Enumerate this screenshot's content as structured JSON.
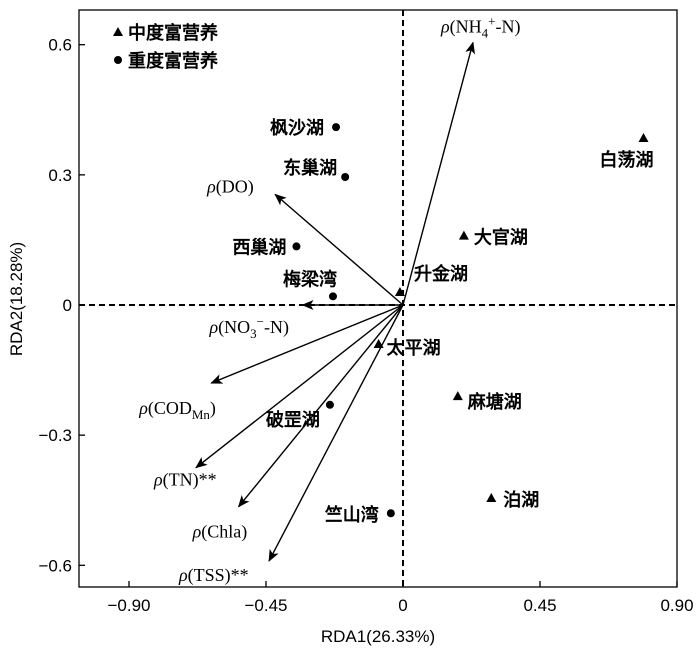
{
  "chart_data": {
    "type": "scatter",
    "title": "",
    "xlabel": "RDA1(26.33%)",
    "ylabel": "RDA2(18.28%)",
    "xlim": [
      -0.9,
      0.9
    ],
    "ylim": [
      -0.65,
      0.68
    ],
    "xticks": [
      -0.9,
      -0.45,
      0,
      0.45,
      0.9
    ],
    "xtick_labels": [
      "−0.90",
      "−0.45",
      "0",
      "0.45",
      "0.90"
    ],
    "yticks": [
      -0.6,
      -0.3,
      0,
      0.3,
      0.6
    ],
    "ytick_labels": [
      "−0.6",
      "−0.3",
      "0",
      "0.3",
      "0.6"
    ],
    "grid": false,
    "reference_lines": [
      {
        "axis": "x",
        "value": 0,
        "style": "dashed"
      },
      {
        "axis": "y",
        "value": 0,
        "style": "dashed"
      }
    ],
    "legend": {
      "placement": "top-left",
      "entries": [
        {
          "marker": "triangle",
          "label": "中度富营养"
        },
        {
          "marker": "circle",
          "label": "重度富营养"
        }
      ]
    },
    "series": [
      {
        "name": "中度富营养",
        "marker": "triangle",
        "points": [
          {
            "label": "白荡湖",
            "x": 0.79,
            "y": 0.385
          },
          {
            "label": "大官湖",
            "x": 0.2,
            "y": 0.16
          },
          {
            "label": "升金湖",
            "x": -0.01,
            "y": 0.03
          },
          {
            "label": "太平湖",
            "x": -0.08,
            "y": -0.09
          },
          {
            "label": "麻塘湖",
            "x": 0.18,
            "y": -0.21
          },
          {
            "label": "泊湖",
            "x": 0.29,
            "y": -0.445
          }
        ]
      },
      {
        "name": "重度富营养",
        "marker": "circle",
        "points": [
          {
            "label": "枫沙湖",
            "x": -0.22,
            "y": 0.41
          },
          {
            "label": "东巢湖",
            "x": -0.19,
            "y": 0.295
          },
          {
            "label": "西巢湖",
            "x": -0.35,
            "y": 0.135
          },
          {
            "label": "梅梁湾",
            "x": -0.23,
            "y": 0.02
          },
          {
            "label": "破罡湖",
            "x": -0.24,
            "y": -0.23
          },
          {
            "label": "竺山湾",
            "x": -0.04,
            "y": -0.48
          }
        ]
      }
    ],
    "vectors": [
      {
        "label": "ρ(NH4+-N)",
        "x": 0.23,
        "y": 0.605
      },
      {
        "label": "ρ(DO)",
        "x": -0.42,
        "y": 0.255
      },
      {
        "label": "ρ(NO3−-N)",
        "x": -0.33,
        "y": 0.0
      },
      {
        "label": "ρ(CODMn)",
        "x": -0.63,
        "y": -0.18
      },
      {
        "label": "ρ(TN)**",
        "x": -0.68,
        "y": -0.375
      },
      {
        "label": "ρ(Chla)",
        "x": -0.54,
        "y": -0.465
      },
      {
        "label": "ρ(TSS)**",
        "x": -0.44,
        "y": -0.59
      }
    ]
  }
}
